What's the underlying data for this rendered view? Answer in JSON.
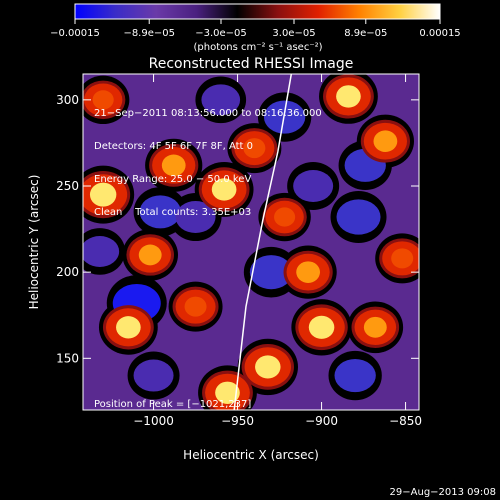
{
  "chart_data": {
    "type": "heatmap",
    "title": "Reconstructed RHESSI Image",
    "xlabel": "Heliocentric X (arcsec)",
    "ylabel": "Heliocentric Y (arcsec)",
    "xlim": [
      -1042,
      -842
    ],
    "ylim": [
      120,
      315
    ],
    "x_ticks": [
      -1000,
      -950,
      -900,
      -850
    ],
    "x_tick_labels": [
      "−1000",
      "−950",
      "−900",
      "−850"
    ],
    "y_ticks": [
      150,
      200,
      250,
      300
    ],
    "y_tick_labels": [
      "150",
      "200",
      "250",
      "300"
    ],
    "colorbar": {
      "range": [
        -0.00015,
        0.00015
      ],
      "tick_values": [
        -0.00015,
        -8.9e-05,
        -3e-05,
        3e-05,
        8.9e-05,
        0.00015
      ],
      "tick_labels": [
        "−0.00015",
        "−8.9e−05",
        "−3.0e−05",
        "3.0e−05",
        "8.9e−05",
        "0.00015"
      ],
      "unit_label": "(photons cm⁻² s⁻¹ asec⁻²)",
      "colors": [
        "#0000ff",
        "#3a2cc8",
        "#6a3aa8",
        "#4a2080",
        "#000000",
        "#8a1010",
        "#e02000",
        "#ff8000",
        "#ffd040",
        "#ffffff"
      ]
    },
    "info_lines": [
      "21−Sep−2011 08:13:56.000 to 08:16:36.000",
      "Detectors: 4F 5F 6F 7F 8F, Att 0",
      "Energy Range: 25.0 − 50.0 keV",
      "Clean    Total counts: 3.35E+03"
    ],
    "peak_label": "Position of Peak = [−1021,237]",
    "peak_position": [
      -1021,
      237
    ],
    "limb": [
      [
        -952,
        120
      ],
      [
        -945,
        180
      ],
      [
        -935,
        230
      ],
      [
        -926,
        270
      ],
      [
        -918,
        315
      ]
    ],
    "hot_spots": [
      {
        "x": -1030,
        "y": 245,
        "value": 0.00015
      },
      {
        "x": -1015,
        "y": 168,
        "value": 0.00013
      },
      {
        "x": -988,
        "y": 262,
        "value": 0.00012
      },
      {
        "x": -1002,
        "y": 210,
        "value": 0.00011
      },
      {
        "x": -958,
        "y": 248,
        "value": 0.00013
      },
      {
        "x": -940,
        "y": 272,
        "value": 0.0001
      },
      {
        "x": -932,
        "y": 145,
        "value": 0.00014
      },
      {
        "x": -956,
        "y": 130,
        "value": 0.00013
      },
      {
        "x": -900,
        "y": 168,
        "value": 0.00014
      },
      {
        "x": -908,
        "y": 200,
        "value": 0.00012
      },
      {
        "x": -884,
        "y": 302,
        "value": 0.00013
      },
      {
        "x": -862,
        "y": 276,
        "value": 0.00012
      },
      {
        "x": -868,
        "y": 168,
        "value": 0.00011
      },
      {
        "x": -852,
        "y": 208,
        "value": 0.0001
      },
      {
        "x": -975,
        "y": 180,
        "value": 0.0001
      },
      {
        "x": -922,
        "y": 232,
        "value": 9e-05
      },
      {
        "x": -1030,
        "y": 300,
        "value": 9e-05
      }
    ],
    "cold_spots": [
      {
        "x": -1010,
        "y": 182,
        "value": -0.00015
      },
      {
        "x": -996,
        "y": 235,
        "value": -0.0001
      },
      {
        "x": -975,
        "y": 232,
        "value": -9e-05
      },
      {
        "x": -922,
        "y": 290,
        "value": -0.0001
      },
      {
        "x": -905,
        "y": 250,
        "value": -9e-05
      },
      {
        "x": -878,
        "y": 232,
        "value": -0.00012
      },
      {
        "x": -874,
        "y": 262,
        "value": -0.0001
      },
      {
        "x": -930,
        "y": 200,
        "value": -0.00011
      },
      {
        "x": -1000,
        "y": 140,
        "value": -9e-05
      },
      {
        "x": -880,
        "y": 140,
        "value": -0.0001
      },
      {
        "x": -960,
        "y": 300,
        "value": -8e-05
      },
      {
        "x": -1032,
        "y": 212,
        "value": -8e-05
      }
    ]
  },
  "footer": {
    "date": "29−Aug−2013 09:08"
  }
}
